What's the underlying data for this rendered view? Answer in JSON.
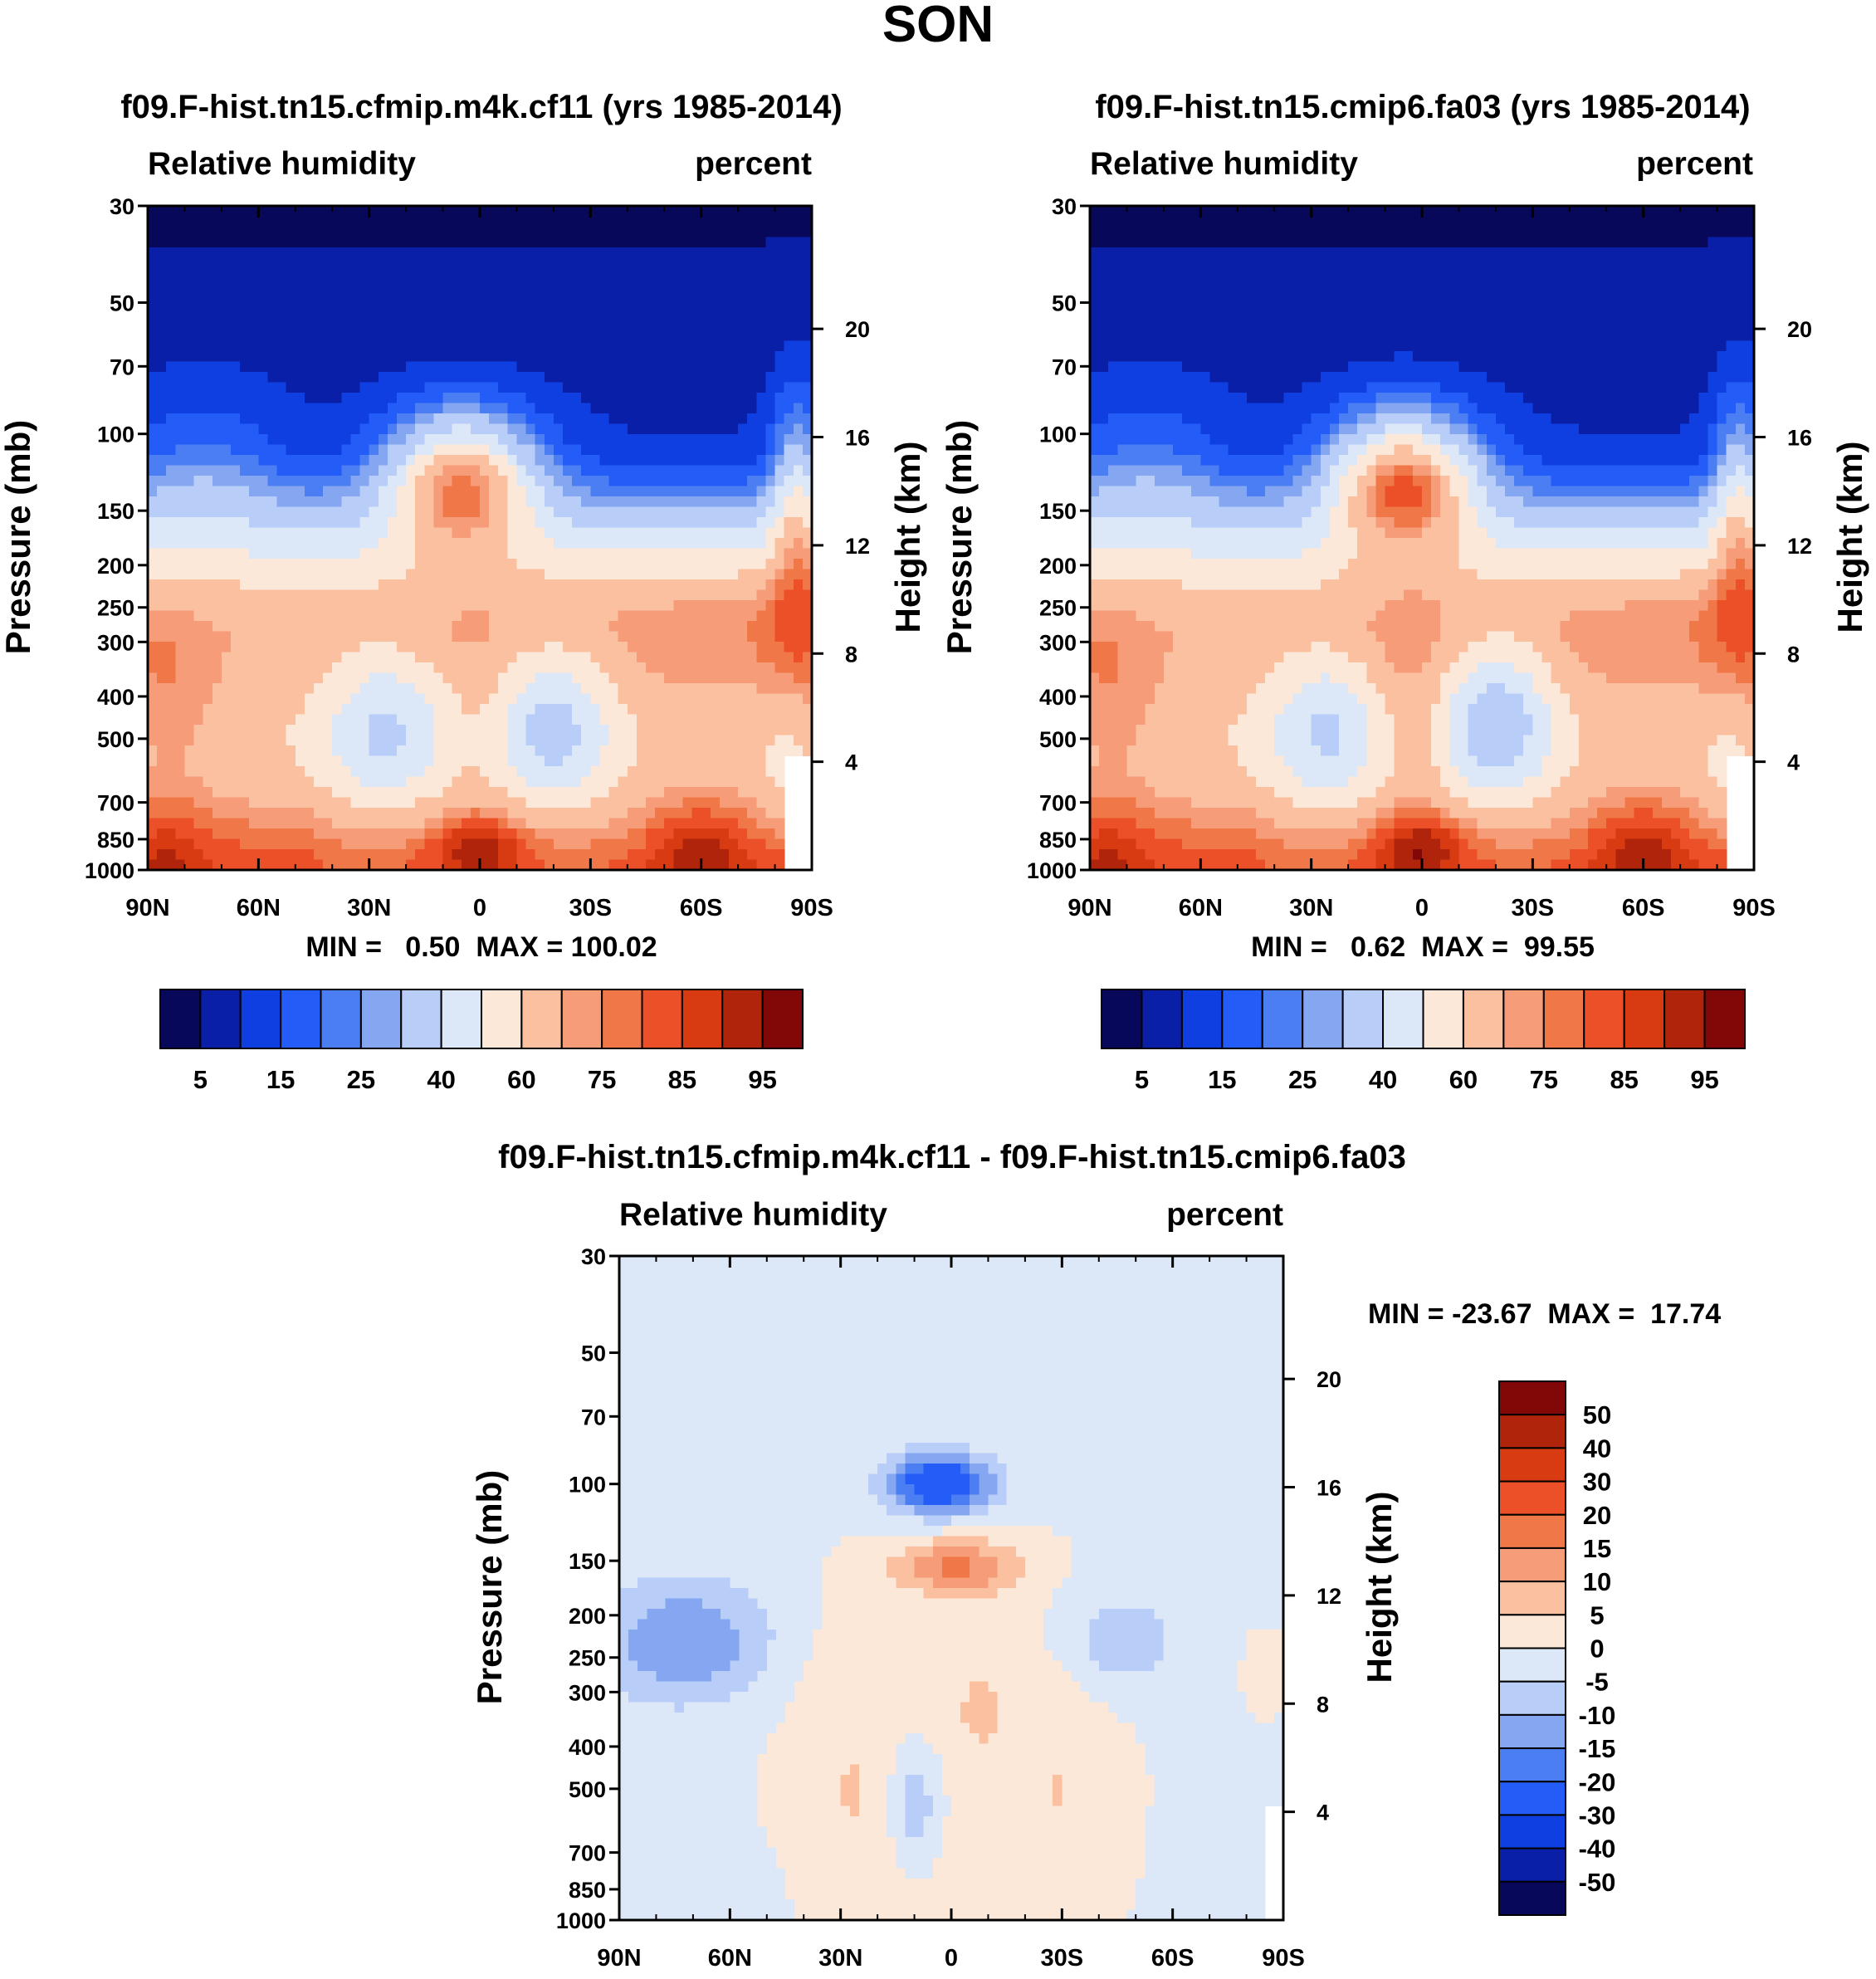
{
  "page_title": "SON",
  "colors": {
    "abs": [
      "#08085a",
      "#0a1fa8",
      "#0f3fe0",
      "#245cf7",
      "#4a7ef2",
      "#85a6f0",
      "#b8cdf7",
      "#dce8f7",
      "#fce8d8",
      "#fac0a0",
      "#f79c78",
      "#f07848",
      "#ec5028",
      "#d83a12",
      "#b0240c",
      "#820808"
    ],
    "diff": [
      "#08085a",
      "#0a1fa8",
      "#0f3fe0",
      "#245cf7",
      "#4a7ef2",
      "#85a6f0",
      "#b8cdf7",
      "#dce8f7",
      "#fce8d8",
      "#fac0a0",
      "#f79c78",
      "#f07848",
      "#ec5028",
      "#d83a12",
      "#b0240c",
      "#820808"
    ]
  },
  "chart_data": [
    {
      "type": "heatmap",
      "id": "case",
      "title": "f09.F-hist.tn15.cfmip.m4k.cf11 (yrs 1985-2014)",
      "left_label": "Relative humidity",
      "right_label": "percent",
      "ylabel": "Pressure (mb)",
      "y2label": "Height (km)",
      "x_ticks": [
        "90N",
        "60N",
        "30N",
        "0",
        "30S",
        "60S",
        "90S"
      ],
      "y_ticks": [
        30,
        50,
        70,
        100,
        150,
        200,
        250,
        300,
        400,
        500,
        700,
        850,
        1000
      ],
      "y2_ticks": [
        20,
        16,
        12,
        8,
        4
      ],
      "xlim": [
        90,
        -90
      ],
      "ylim": [
        30,
        1000
      ],
      "stats": "MIN =   0.50  MAX = 100.02",
      "levels": [
        5,
        10,
        15,
        20,
        25,
        30,
        40,
        50,
        60,
        70,
        75,
        80,
        85,
        90,
        95
      ],
      "cb_labels": [
        "5",
        "15",
        "25",
        "40",
        "60",
        "75",
        "85",
        "95"
      ],
      "cb_label_idx": [
        1,
        3,
        5,
        7,
        9,
        11,
        13,
        15
      ]
    },
    {
      "type": "heatmap",
      "id": "ctrl",
      "title": "f09.F-hist.tn15.cmip6.fa03 (yrs 1985-2014)",
      "left_label": "Relative humidity",
      "right_label": "percent",
      "ylabel": "Pressure (mb)",
      "y2label": "Height (km)",
      "x_ticks": [
        "90N",
        "60N",
        "30N",
        "0",
        "30S",
        "60S",
        "90S"
      ],
      "y_ticks": [
        30,
        50,
        70,
        100,
        150,
        200,
        250,
        300,
        400,
        500,
        700,
        850,
        1000
      ],
      "y2_ticks": [
        20,
        16,
        12,
        8,
        4
      ],
      "xlim": [
        90,
        -90
      ],
      "ylim": [
        30,
        1000
      ],
      "stats": "MIN =   0.62  MAX =  99.55",
      "levels": [
        5,
        10,
        15,
        20,
        25,
        30,
        40,
        50,
        60,
        70,
        75,
        80,
        85,
        90,
        95
      ],
      "cb_labels": [
        "5",
        "15",
        "25",
        "40",
        "60",
        "75",
        "85",
        "95"
      ],
      "cb_label_idx": [
        1,
        3,
        5,
        7,
        9,
        11,
        13,
        15
      ]
    },
    {
      "type": "heatmap",
      "id": "diff",
      "title": "f09.F-hist.tn15.cfmip.m4k.cf11 - f09.F-hist.tn15.cmip6.fa03",
      "left_label": "Relative humidity",
      "right_label": "percent",
      "ylabel": "Pressure (mb)",
      "y2label": "Height (km)",
      "x_ticks": [
        "90N",
        "60N",
        "30N",
        "0",
        "30S",
        "60S",
        "90S"
      ],
      "y_ticks": [
        30,
        50,
        70,
        100,
        150,
        200,
        250,
        300,
        400,
        500,
        700,
        850,
        1000
      ],
      "y2_ticks": [
        20,
        16,
        12,
        8,
        4
      ],
      "xlim": [
        90,
        -90
      ],
      "ylim": [
        30,
        1000
      ],
      "stats": "MIN = -23.67  MAX =  17.74",
      "levels": [
        -50,
        -40,
        -30,
        -20,
        -15,
        -10,
        -5,
        0,
        5,
        10,
        15,
        20,
        30,
        40,
        50
      ],
      "cb_labels": [
        "50",
        "40",
        "30",
        "20",
        "15",
        "10",
        "5",
        "0",
        "-5",
        "-10",
        "-15",
        "-20",
        "-30",
        "-40",
        "-50"
      ]
    }
  ]
}
